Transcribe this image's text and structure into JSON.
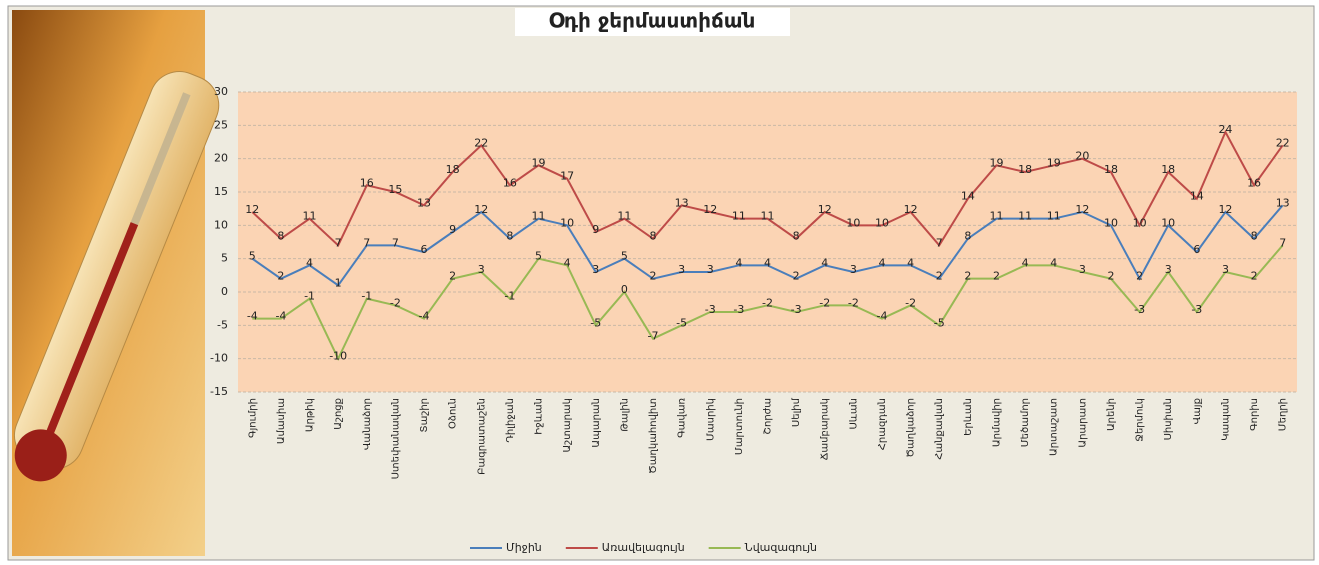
{
  "chart_data": {
    "type": "line",
    "title": "Օդի ջերմաստիճան",
    "categories": [
      "Գյումրի",
      "Ամասիա",
      "Արթիկ",
      "Աշոցք",
      "Վանաձոր",
      "Ստեփանավան",
      "Տաշիր",
      "Օձուն",
      "Բագրատաշեն",
      "Դիլիջան",
      "Իջևան",
      "Աշտարակ",
      "Ապարան",
      "Թալին",
      "Ծաղկահովիտ",
      "Գավառ",
      "Մասրիկ",
      "Մարտունի",
      "Շորժա",
      "Սելիմ",
      "Ճամբարակ",
      "Սևան",
      "Հրազդան",
      "Ծաղկաձոր",
      "Հանքավան",
      "Երևան",
      "Արմավիր",
      "Մեծամոր",
      "Արտաշատ",
      "Արարատ",
      "Արենի",
      "Ջերմուկ",
      "Սիսիան",
      "Վայք",
      "Կապան",
      "Գորիս",
      "Մեղրի"
    ],
    "series": [
      {
        "name": "Միջին",
        "color": "#4a7ebb",
        "values": [
          5,
          2,
          4,
          1,
          7,
          7,
          6,
          9,
          12,
          8,
          11,
          10,
          3,
          5,
          2,
          3,
          3,
          4,
          4,
          2,
          4,
          3,
          4,
          4,
          2,
          8,
          11,
          11,
          11,
          12,
          10,
          2,
          10,
          6,
          12,
          8,
          13
        ]
      },
      {
        "name": "Առավելագույն",
        "color": "#be4b48",
        "values": [
          12,
          8,
          11,
          7,
          16,
          15,
          13,
          18,
          22,
          16,
          19,
          17,
          9,
          11,
          8,
          13,
          12,
          11,
          11,
          8,
          12,
          10,
          10,
          12,
          7,
          14,
          19,
          18,
          19,
          20,
          18,
          10,
          18,
          14,
          24,
          16,
          22
        ]
      },
      {
        "name": "Նվազագույն",
        "color": "#98b954",
        "values": [
          -4,
          -4,
          -1,
          -10,
          -1,
          -2,
          -4,
          2,
          3,
          -1,
          5,
          4,
          -5,
          0,
          -7,
          -5,
          -3,
          -3,
          -2,
          -3,
          -2,
          -2,
          -4,
          -2,
          -5,
          2,
          2,
          4,
          4,
          3,
          2,
          -3,
          3,
          -3,
          3,
          2,
          7
        ]
      }
    ],
    "ylim": [
      -15,
      30
    ],
    "yticks": [
      -15,
      -10,
      -5,
      0,
      5,
      10,
      15,
      20,
      25,
      30
    ],
    "grid": true,
    "legend": "bottom"
  }
}
